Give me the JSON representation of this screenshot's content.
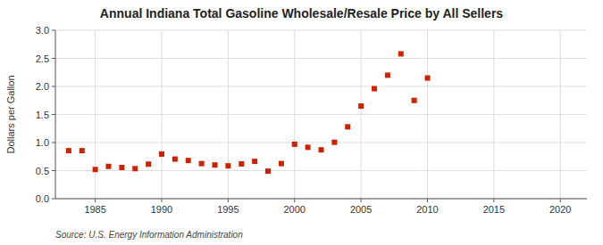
{
  "chart_data": {
    "type": "scatter",
    "title": "Annual Indiana Total Gasoline Wholesale/Resale Price by All Sellers",
    "ylabel": "Dollars per Gallon",
    "source": "Source: U.S. Energy Information Administration",
    "x": [
      1983,
      1984,
      1985,
      1986,
      1987,
      1988,
      1989,
      1990,
      1991,
      1992,
      1993,
      1994,
      1995,
      1996,
      1997,
      1998,
      1999,
      2000,
      2001,
      2002,
      2003,
      2004,
      2005,
      2006,
      2007,
      2008,
      2009,
      2010
    ],
    "values": [
      0.855,
      0.855,
      0.52,
      0.575,
      0.555,
      0.535,
      0.615,
      0.795,
      0.705,
      0.68,
      0.625,
      0.6,
      0.585,
      0.62,
      0.665,
      0.49,
      0.625,
      0.97,
      0.915,
      0.87,
      1.005,
      1.28,
      1.65,
      1.96,
      2.2,
      2.58,
      1.75,
      2.15
    ],
    "color": "#cc2200",
    "marker": "square",
    "xlim": [
      1982,
      2022
    ],
    "ylim": [
      0.0,
      3.0
    ],
    "xticks": [
      1985,
      1990,
      1995,
      2000,
      2005,
      2010,
      2015,
      2020
    ],
    "yticks": [
      {
        "value": 0.0,
        "label": "0.0"
      },
      0.5,
      {
        "value": 1.0,
        "label": "1.0"
      },
      1.5,
      {
        "value": 2.0,
        "label": "2.0"
      },
      2.5,
      {
        "value": 3.0,
        "label": "3.0"
      }
    ],
    "grid": true
  }
}
